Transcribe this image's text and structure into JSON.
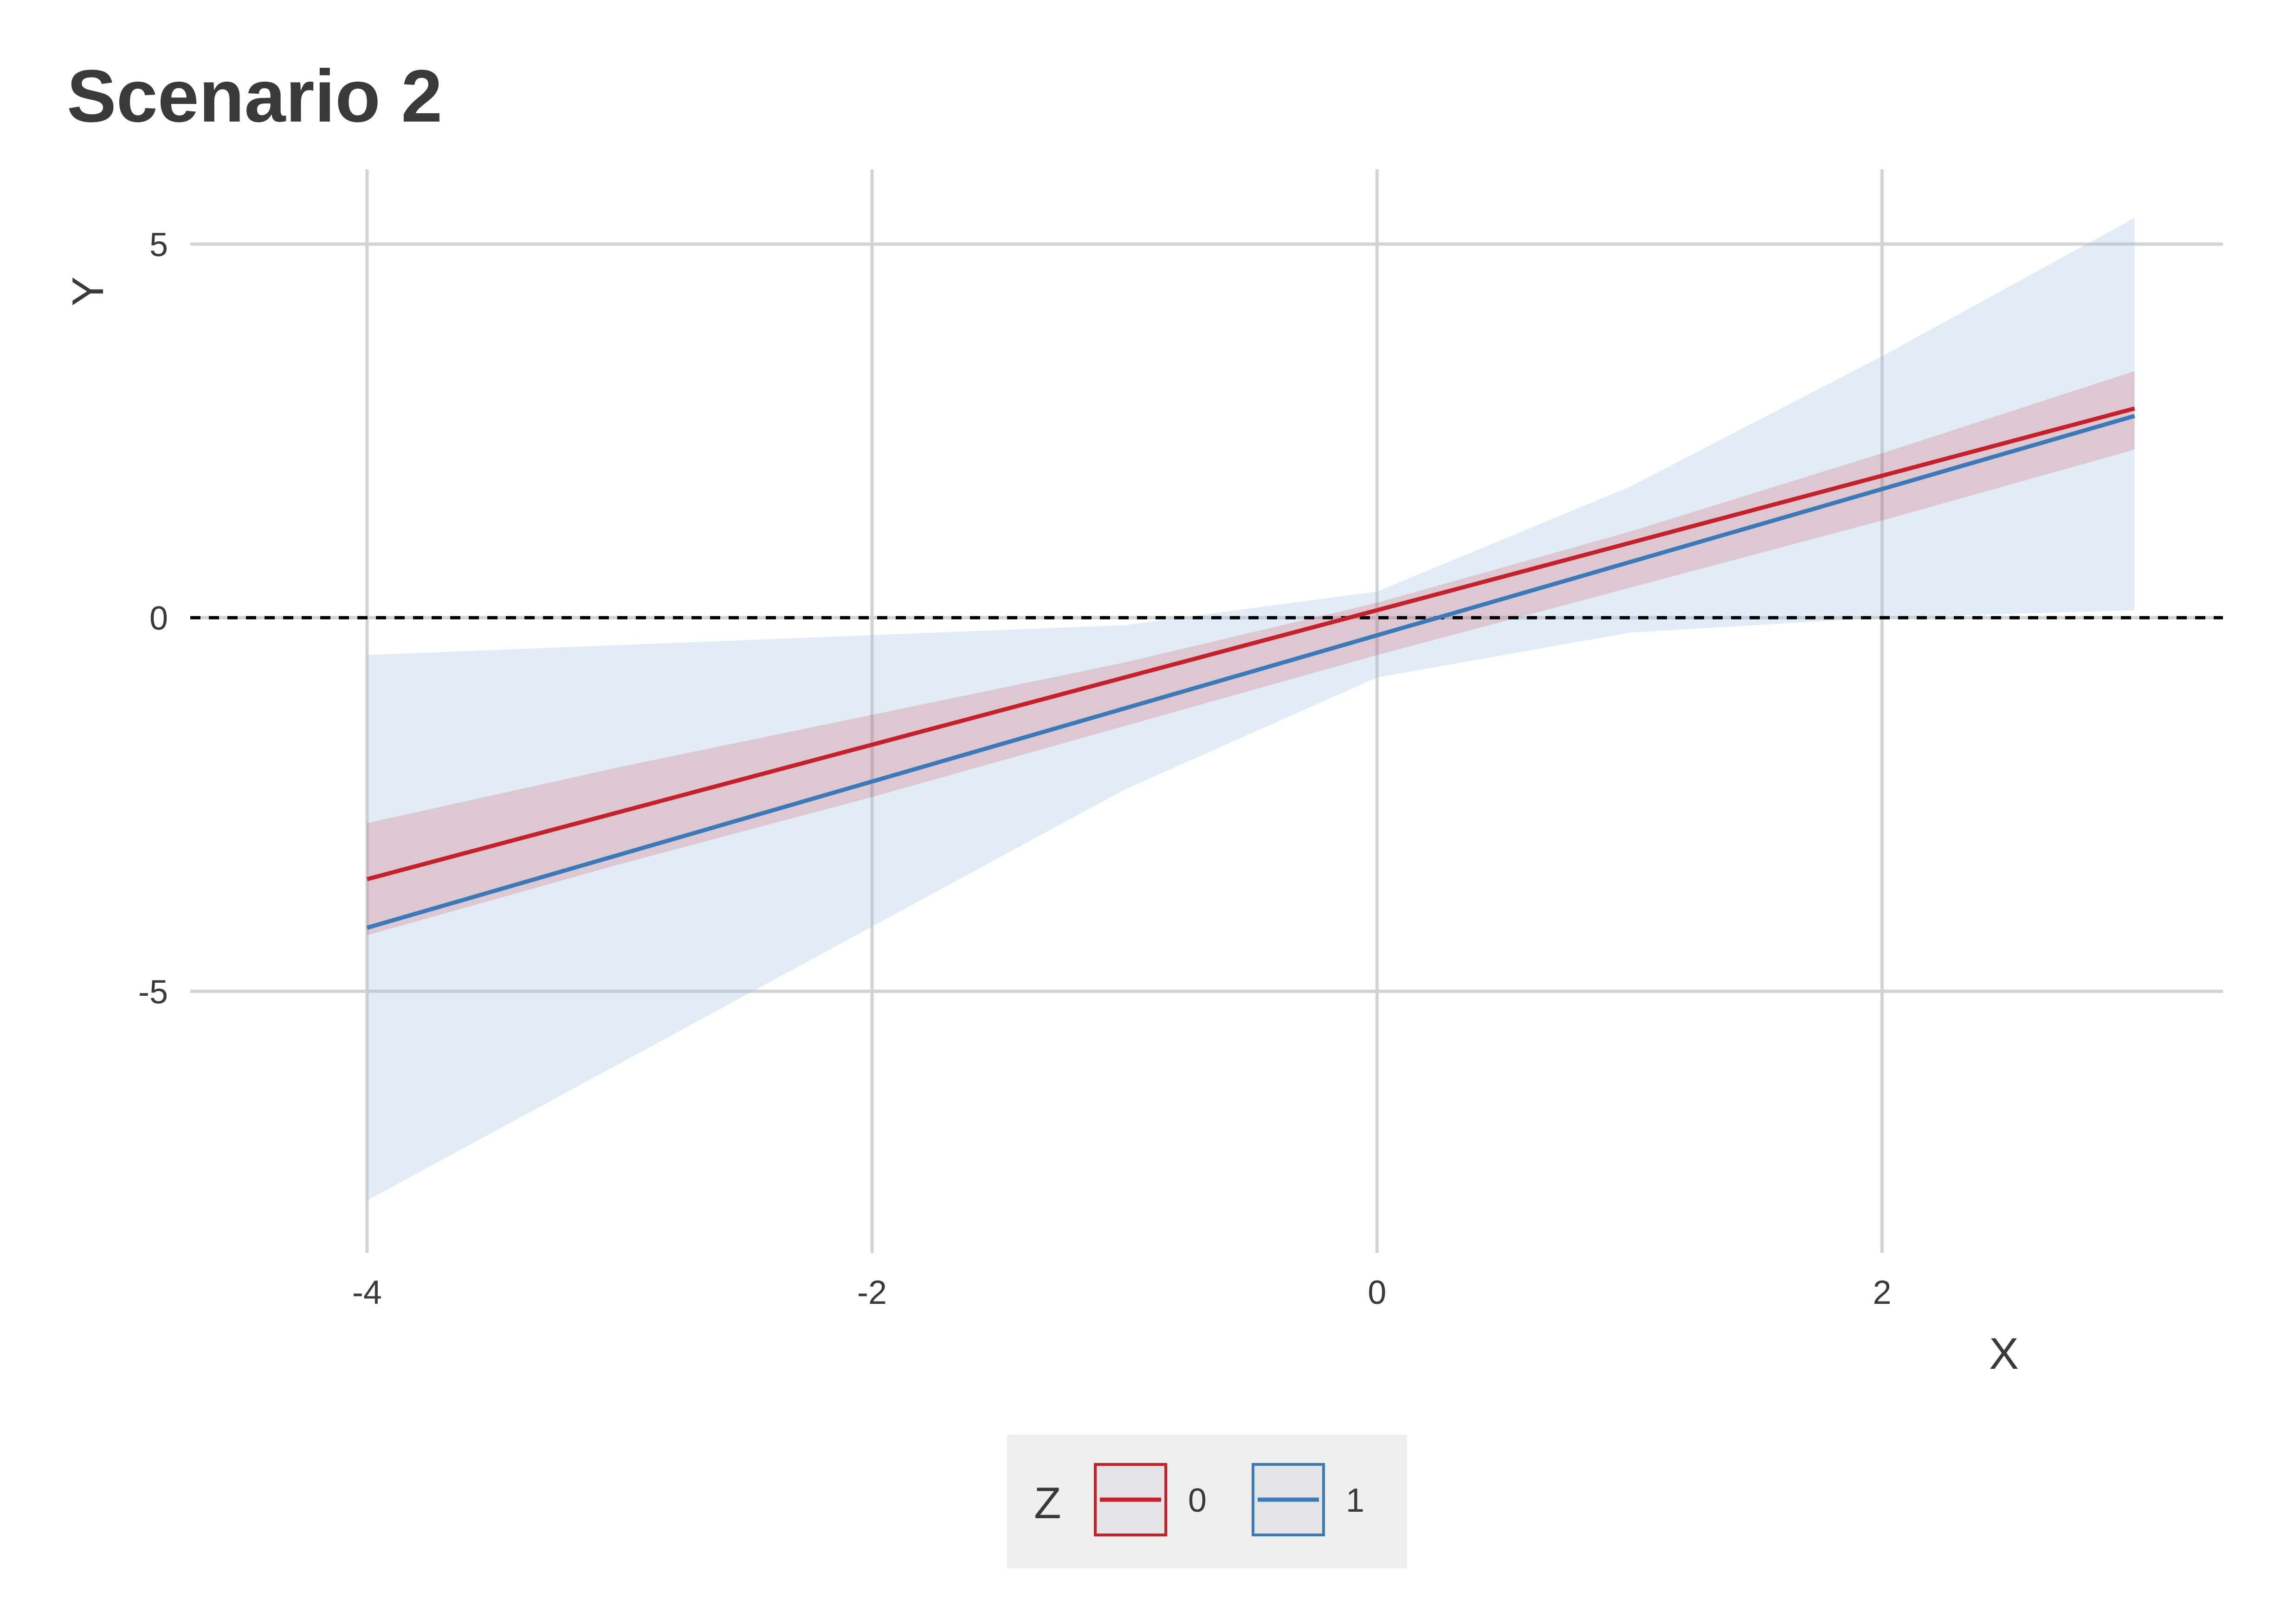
{
  "chart_data": {
    "type": "line",
    "title": "Scenario 2",
    "xlabel": "X",
    "ylabel": "Y",
    "xlim": [
      -4.7,
      3.35
    ],
    "ylim": [
      -8.5,
      6.0
    ],
    "x_ticks": [
      -4,
      -2,
      0,
      2
    ],
    "x_tick_labels": [
      "-4",
      "-2",
      "0",
      "2"
    ],
    "y_ticks": [
      -5,
      0,
      5
    ],
    "y_tick_labels": [
      "-5",
      "0",
      "5"
    ],
    "grid": true,
    "reference_line": {
      "y": 0,
      "style": "dashed",
      "color": "#000000"
    },
    "legend": {
      "title": "Z",
      "position": "bottom",
      "entries": [
        "0",
        "1"
      ]
    },
    "series": [
      {
        "name": "0",
        "color": "#c8202a",
        "band_color": "#c8202a",
        "band_opacity": 0.18,
        "x": [
          -4,
          3
        ],
        "y": [
          -3.5,
          2.8
        ],
        "band_x": [
          -4,
          -3,
          -2,
          -1,
          0,
          1,
          2,
          3
        ],
        "band_lower": [
          -4.25,
          -3.3,
          -2.4,
          -1.45,
          -0.5,
          0.4,
          1.3,
          2.25
        ],
        "band_upper": [
          -2.75,
          -2.0,
          -1.3,
          -0.6,
          0.2,
          1.15,
          2.2,
          3.3
        ]
      },
      {
        "name": "1",
        "color": "#3a7ab8",
        "band_color": "#9ec0e2",
        "band_opacity": 0.3,
        "x": [
          -4,
          3
        ],
        "y": [
          -4.15,
          2.7
        ],
        "band_x": [
          -4,
          -1,
          0,
          1,
          2,
          3
        ],
        "band_lower": [
          -7.8,
          -2.3,
          -0.8,
          -0.2,
          0.0,
          0.1
        ],
        "band_upper": [
          -0.5,
          -0.1,
          0.35,
          1.75,
          3.5,
          5.35
        ]
      }
    ]
  }
}
